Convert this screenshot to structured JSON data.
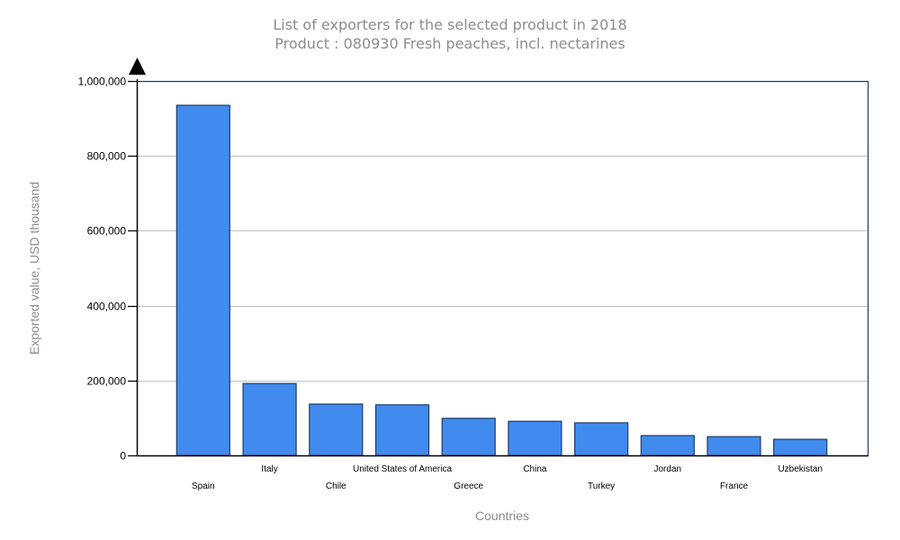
{
  "chart_data": {
    "type": "bar",
    "title": "List of exporters for the selected product in 2018",
    "subtitle": "Product : 080930 Fresh peaches, incl. nectarines",
    "xlabel": "Countries",
    "ylabel": "Exported value, USD thousand",
    "categories": [
      "Spain",
      "Italy",
      "Chile",
      "United States of America",
      "Greece",
      "China",
      "Turkey",
      "Jordan",
      "France",
      "Uzbekistan"
    ],
    "values": [
      935000,
      192000,
      137000,
      135000,
      99000,
      91000,
      87000,
      53000,
      50000,
      43000
    ],
    "ylim": [
      0,
      1000000
    ],
    "yticks": [
      0,
      200000,
      400000,
      600000,
      800000,
      1000000
    ],
    "ytick_labels": [
      "0",
      "200,000",
      "400,000",
      "600,000",
      "800,000",
      "1,000,000"
    ],
    "grid": true,
    "legend": "none",
    "colors": {
      "bar_fill": "#418BEE",
      "bar_stroke": "#1F3B66",
      "frame": "#1F3B66",
      "grid": "#C0C0C0",
      "title": "#8C8C8C"
    }
  }
}
